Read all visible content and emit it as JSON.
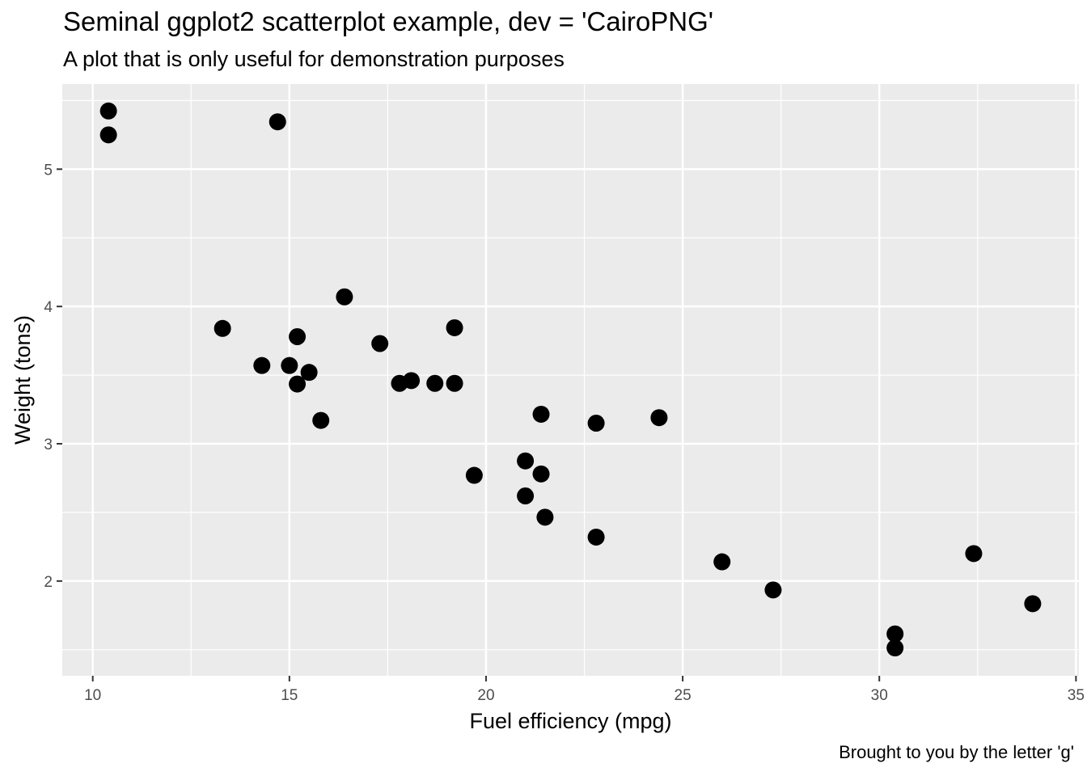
{
  "chart_data": {
    "type": "scatter",
    "title": "Seminal ggplot2 scatterplot example, dev = 'CairoPNG'",
    "subtitle": "A plot that is only useful for demonstration purposes",
    "caption": "Brought to you by the letter 'g'",
    "xlabel": "Fuel efficiency (mpg)",
    "ylabel": "Weight (tons)",
    "xlim": [
      9.225,
      35.075
    ],
    "ylim": [
      1.31,
      5.62
    ],
    "x_ticks": [
      10,
      15,
      20,
      25,
      30,
      35
    ],
    "y_ticks": [
      2,
      3,
      4,
      5
    ],
    "grid": true,
    "panel_background": "#ebebeb",
    "grid_color": "#ffffff",
    "point_color": "#000000",
    "series": [
      {
        "x": [
          21.0,
          21.0,
          22.8,
          21.4,
          18.7,
          18.1,
          14.3,
          24.4,
          22.8,
          19.2,
          17.8,
          16.4,
          17.3,
          15.2,
          10.4,
          10.4,
          14.7,
          32.4,
          30.4,
          33.9,
          21.5,
          15.5,
          15.2,
          13.3,
          19.2,
          27.3,
          26.0,
          30.4,
          15.8,
          19.7,
          15.0,
          21.4
        ],
        "y": [
          2.62,
          2.875,
          2.32,
          3.215,
          3.44,
          3.46,
          3.57,
          3.19,
          3.15,
          3.44,
          3.44,
          4.07,
          3.73,
          3.78,
          5.25,
          5.424,
          5.345,
          2.2,
          1.615,
          1.835,
          2.465,
          3.52,
          3.435,
          3.84,
          3.845,
          1.935,
          2.14,
          1.513,
          3.17,
          2.77,
          3.57,
          2.78
        ]
      }
    ]
  }
}
